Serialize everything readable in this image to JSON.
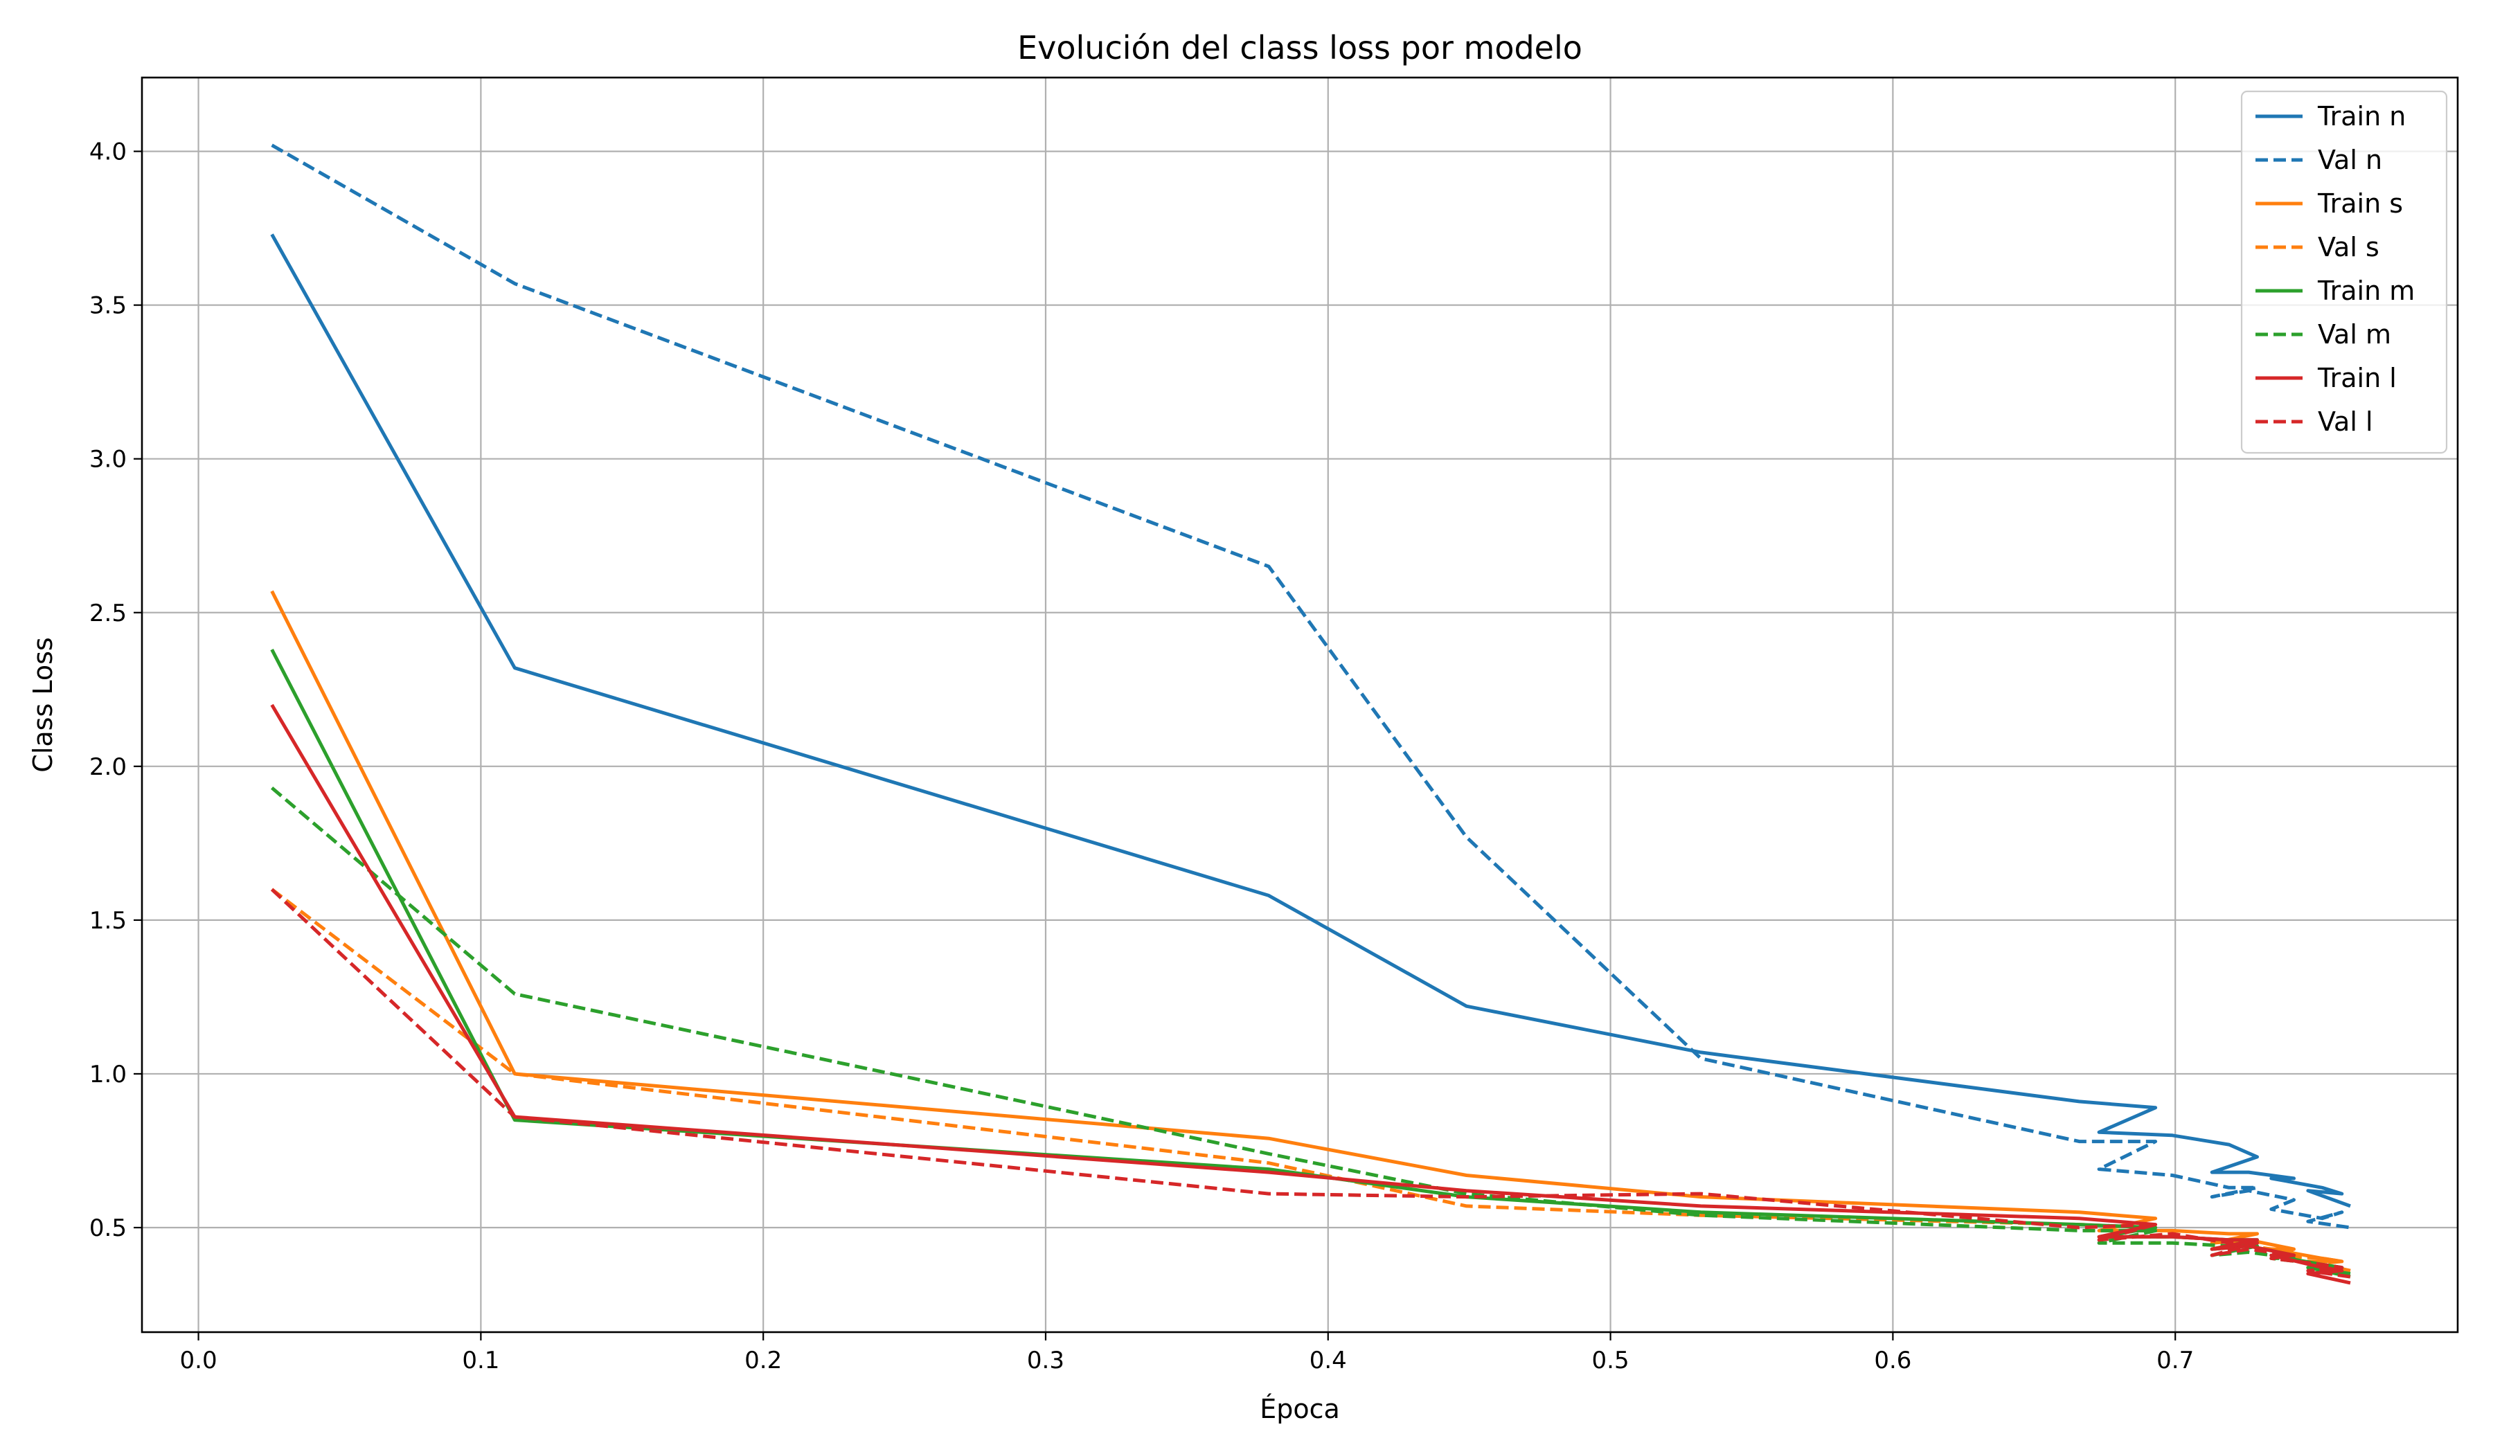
{
  "chart_data": {
    "type": "line",
    "title": "Evolución del class loss por modelo",
    "xlabel": "Época",
    "ylabel": "Class Loss",
    "xlim": [
      -0.02,
      0.8
    ],
    "ylim": [
      0.16,
      4.24
    ],
    "xticks": [
      0.0,
      0.1,
      0.2,
      0.3,
      0.4,
      0.5,
      0.6,
      0.7
    ],
    "xtick_labels": [
      "0.0",
      "0.1",
      "0.2",
      "0.3",
      "0.4",
      "0.5",
      "0.6",
      "0.7"
    ],
    "yticks": [
      0.5,
      1.0,
      1.5,
      2.0,
      2.5,
      3.0,
      3.5,
      4.0
    ],
    "ytick_labels": [
      "0.5",
      "1.0",
      "1.5",
      "2.0",
      "2.5",
      "3.0",
      "3.5",
      "4.0"
    ],
    "grid": true,
    "legend_position": "top-right",
    "series": [
      {
        "name": "Train n",
        "color": "#1f77b4",
        "dash": "solid",
        "x": [
          0.026,
          0.112,
          0.379,
          0.449,
          0.532,
          0.666,
          0.693,
          0.673,
          0.699,
          0.719,
          0.729,
          0.713,
          0.726,
          0.742,
          0.734,
          0.752,
          0.759,
          0.747,
          0.762
        ],
        "y": [
          3.73,
          2.32,
          1.58,
          1.22,
          1.07,
          0.91,
          0.89,
          0.81,
          0.8,
          0.77,
          0.73,
          0.68,
          0.68,
          0.66,
          0.66,
          0.63,
          0.61,
          0.62,
          0.57
        ]
      },
      {
        "name": "Val n",
        "color": "#1f77b4",
        "dash": "dashed",
        "x": [
          0.026,
          0.112,
          0.379,
          0.449,
          0.532,
          0.666,
          0.693,
          0.673,
          0.699,
          0.719,
          0.729,
          0.713,
          0.726,
          0.742,
          0.734,
          0.752,
          0.759,
          0.747,
          0.762
        ],
        "y": [
          4.02,
          3.57,
          2.65,
          1.77,
          1.05,
          0.78,
          0.78,
          0.69,
          0.67,
          0.63,
          0.63,
          0.6,
          0.62,
          0.59,
          0.56,
          0.53,
          0.55,
          0.52,
          0.5
        ]
      },
      {
        "name": "Train s",
        "color": "#ff7f0e",
        "dash": "solid",
        "x": [
          0.026,
          0.112,
          0.379,
          0.449,
          0.532,
          0.666,
          0.693,
          0.673,
          0.699,
          0.719,
          0.729,
          0.713,
          0.726,
          0.742,
          0.734,
          0.752,
          0.759,
          0.747,
          0.762
        ],
        "y": [
          2.57,
          1.0,
          0.79,
          0.67,
          0.6,
          0.55,
          0.53,
          0.49,
          0.49,
          0.48,
          0.48,
          0.45,
          0.46,
          0.43,
          0.43,
          0.4,
          0.39,
          0.39,
          0.36
        ]
      },
      {
        "name": "Val s",
        "color": "#ff7f0e",
        "dash": "dashed",
        "x": [
          0.026,
          0.112,
          0.379,
          0.449,
          0.532,
          0.666,
          0.693,
          0.673,
          0.699,
          0.719,
          0.729,
          0.713,
          0.726,
          0.742,
          0.734,
          0.752,
          0.759,
          0.747,
          0.762
        ],
        "y": [
          1.6,
          1.0,
          0.71,
          0.57,
          0.54,
          0.51,
          0.5,
          0.47,
          0.47,
          0.46,
          0.45,
          0.43,
          0.44,
          0.42,
          0.41,
          0.4,
          0.39,
          0.38,
          0.36
        ]
      },
      {
        "name": "Train m",
        "color": "#2ca02c",
        "dash": "solid",
        "x": [
          0.026,
          0.112,
          0.379,
          0.449,
          0.532,
          0.666,
          0.693,
          0.673,
          0.699,
          0.719,
          0.729,
          0.713,
          0.726,
          0.742,
          0.734,
          0.752,
          0.759,
          0.747,
          0.762
        ],
        "y": [
          2.38,
          0.85,
          0.69,
          0.6,
          0.55,
          0.51,
          0.5,
          0.47,
          0.47,
          0.46,
          0.46,
          0.43,
          0.44,
          0.41,
          0.41,
          0.38,
          0.37,
          0.37,
          0.34
        ]
      },
      {
        "name": "Val m",
        "color": "#2ca02c",
        "dash": "dashed",
        "x": [
          0.026,
          0.112,
          0.379,
          0.449,
          0.532,
          0.666,
          0.693,
          0.673,
          0.699,
          0.719,
          0.729,
          0.713,
          0.726,
          0.742,
          0.734,
          0.752,
          0.759,
          0.747,
          0.762
        ],
        "y": [
          1.93,
          1.26,
          0.74,
          0.61,
          0.54,
          0.49,
          0.49,
          0.45,
          0.45,
          0.44,
          0.44,
          0.41,
          0.42,
          0.4,
          0.4,
          0.38,
          0.37,
          0.37,
          0.35
        ]
      },
      {
        "name": "Train l",
        "color": "#d62728",
        "dash": "solid",
        "x": [
          0.026,
          0.112,
          0.379,
          0.449,
          0.532,
          0.666,
          0.693,
          0.673,
          0.699,
          0.719,
          0.729,
          0.713,
          0.726,
          0.742,
          0.734,
          0.752,
          0.759,
          0.747,
          0.762
        ],
        "y": [
          2.2,
          0.86,
          0.68,
          0.62,
          0.57,
          0.53,
          0.51,
          0.47,
          0.47,
          0.46,
          0.46,
          0.43,
          0.44,
          0.41,
          0.41,
          0.37,
          0.36,
          0.35,
          0.32
        ]
      },
      {
        "name": "Val l",
        "color": "#d62728",
        "dash": "dashed",
        "x": [
          0.026,
          0.112,
          0.379,
          0.449,
          0.532,
          0.666,
          0.693,
          0.673,
          0.699,
          0.719,
          0.729,
          0.713,
          0.726,
          0.742,
          0.734,
          0.752,
          0.759,
          0.747,
          0.762
        ],
        "y": [
          1.6,
          0.86,
          0.61,
          0.6,
          0.61,
          0.5,
          0.51,
          0.46,
          0.48,
          0.45,
          0.45,
          0.41,
          0.43,
          0.41,
          0.4,
          0.38,
          0.37,
          0.36,
          0.34
        ]
      }
    ]
  }
}
